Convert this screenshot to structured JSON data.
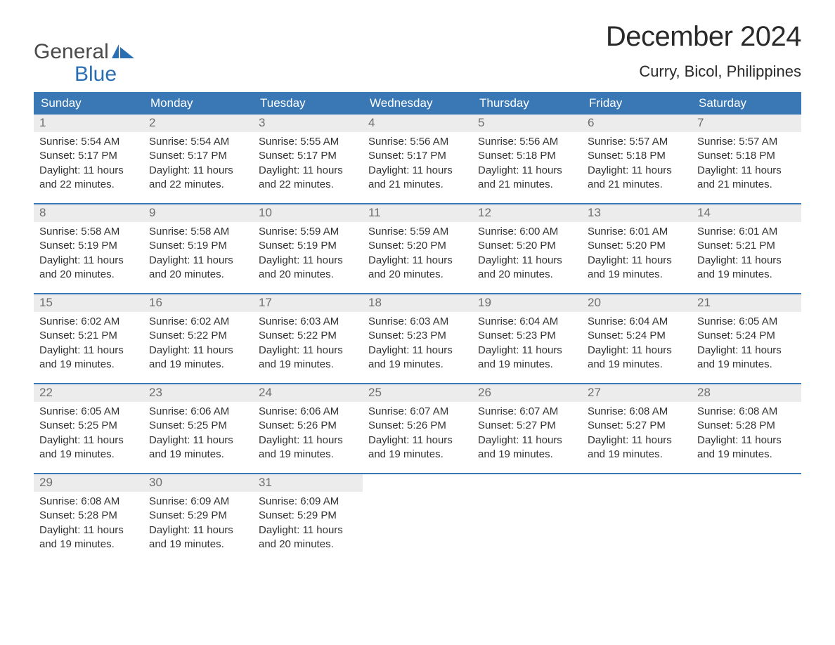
{
  "brand": {
    "top": "General",
    "bottom": "Blue",
    "flag_color": "#2b6fb3"
  },
  "title": "December 2024",
  "location": "Curry, Bicol, Philippines",
  "colors": {
    "header_bg": "#3a78b5",
    "header_text": "#ffffff",
    "daynum_bg": "#ececec",
    "daynum_text": "#6e6e6e",
    "week_border": "#3a78b5",
    "body_text": "#333333",
    "background": "#ffffff"
  },
  "dows": [
    "Sunday",
    "Monday",
    "Tuesday",
    "Wednesday",
    "Thursday",
    "Friday",
    "Saturday"
  ],
  "weeks": [
    [
      {
        "n": "1",
        "sunrise": "Sunrise: 5:54 AM",
        "sunset": "Sunset: 5:17 PM",
        "daylight": "Daylight: 11 hours and 22 minutes."
      },
      {
        "n": "2",
        "sunrise": "Sunrise: 5:54 AM",
        "sunset": "Sunset: 5:17 PM",
        "daylight": "Daylight: 11 hours and 22 minutes."
      },
      {
        "n": "3",
        "sunrise": "Sunrise: 5:55 AM",
        "sunset": "Sunset: 5:17 PM",
        "daylight": "Daylight: 11 hours and 22 minutes."
      },
      {
        "n": "4",
        "sunrise": "Sunrise: 5:56 AM",
        "sunset": "Sunset: 5:17 PM",
        "daylight": "Daylight: 11 hours and 21 minutes."
      },
      {
        "n": "5",
        "sunrise": "Sunrise: 5:56 AM",
        "sunset": "Sunset: 5:18 PM",
        "daylight": "Daylight: 11 hours and 21 minutes."
      },
      {
        "n": "6",
        "sunrise": "Sunrise: 5:57 AM",
        "sunset": "Sunset: 5:18 PM",
        "daylight": "Daylight: 11 hours and 21 minutes."
      },
      {
        "n": "7",
        "sunrise": "Sunrise: 5:57 AM",
        "sunset": "Sunset: 5:18 PM",
        "daylight": "Daylight: 11 hours and 21 minutes."
      }
    ],
    [
      {
        "n": "8",
        "sunrise": "Sunrise: 5:58 AM",
        "sunset": "Sunset: 5:19 PM",
        "daylight": "Daylight: 11 hours and 20 minutes."
      },
      {
        "n": "9",
        "sunrise": "Sunrise: 5:58 AM",
        "sunset": "Sunset: 5:19 PM",
        "daylight": "Daylight: 11 hours and 20 minutes."
      },
      {
        "n": "10",
        "sunrise": "Sunrise: 5:59 AM",
        "sunset": "Sunset: 5:19 PM",
        "daylight": "Daylight: 11 hours and 20 minutes."
      },
      {
        "n": "11",
        "sunrise": "Sunrise: 5:59 AM",
        "sunset": "Sunset: 5:20 PM",
        "daylight": "Daylight: 11 hours and 20 minutes."
      },
      {
        "n": "12",
        "sunrise": "Sunrise: 6:00 AM",
        "sunset": "Sunset: 5:20 PM",
        "daylight": "Daylight: 11 hours and 20 minutes."
      },
      {
        "n": "13",
        "sunrise": "Sunrise: 6:01 AM",
        "sunset": "Sunset: 5:20 PM",
        "daylight": "Daylight: 11 hours and 19 minutes."
      },
      {
        "n": "14",
        "sunrise": "Sunrise: 6:01 AM",
        "sunset": "Sunset: 5:21 PM",
        "daylight": "Daylight: 11 hours and 19 minutes."
      }
    ],
    [
      {
        "n": "15",
        "sunrise": "Sunrise: 6:02 AM",
        "sunset": "Sunset: 5:21 PM",
        "daylight": "Daylight: 11 hours and 19 minutes."
      },
      {
        "n": "16",
        "sunrise": "Sunrise: 6:02 AM",
        "sunset": "Sunset: 5:22 PM",
        "daylight": "Daylight: 11 hours and 19 minutes."
      },
      {
        "n": "17",
        "sunrise": "Sunrise: 6:03 AM",
        "sunset": "Sunset: 5:22 PM",
        "daylight": "Daylight: 11 hours and 19 minutes."
      },
      {
        "n": "18",
        "sunrise": "Sunrise: 6:03 AM",
        "sunset": "Sunset: 5:23 PM",
        "daylight": "Daylight: 11 hours and 19 minutes."
      },
      {
        "n": "19",
        "sunrise": "Sunrise: 6:04 AM",
        "sunset": "Sunset: 5:23 PM",
        "daylight": "Daylight: 11 hours and 19 minutes."
      },
      {
        "n": "20",
        "sunrise": "Sunrise: 6:04 AM",
        "sunset": "Sunset: 5:24 PM",
        "daylight": "Daylight: 11 hours and 19 minutes."
      },
      {
        "n": "21",
        "sunrise": "Sunrise: 6:05 AM",
        "sunset": "Sunset: 5:24 PM",
        "daylight": "Daylight: 11 hours and 19 minutes."
      }
    ],
    [
      {
        "n": "22",
        "sunrise": "Sunrise: 6:05 AM",
        "sunset": "Sunset: 5:25 PM",
        "daylight": "Daylight: 11 hours and 19 minutes."
      },
      {
        "n": "23",
        "sunrise": "Sunrise: 6:06 AM",
        "sunset": "Sunset: 5:25 PM",
        "daylight": "Daylight: 11 hours and 19 minutes."
      },
      {
        "n": "24",
        "sunrise": "Sunrise: 6:06 AM",
        "sunset": "Sunset: 5:26 PM",
        "daylight": "Daylight: 11 hours and 19 minutes."
      },
      {
        "n": "25",
        "sunrise": "Sunrise: 6:07 AM",
        "sunset": "Sunset: 5:26 PM",
        "daylight": "Daylight: 11 hours and 19 minutes."
      },
      {
        "n": "26",
        "sunrise": "Sunrise: 6:07 AM",
        "sunset": "Sunset: 5:27 PM",
        "daylight": "Daylight: 11 hours and 19 minutes."
      },
      {
        "n": "27",
        "sunrise": "Sunrise: 6:08 AM",
        "sunset": "Sunset: 5:27 PM",
        "daylight": "Daylight: 11 hours and 19 minutes."
      },
      {
        "n": "28",
        "sunrise": "Sunrise: 6:08 AM",
        "sunset": "Sunset: 5:28 PM",
        "daylight": "Daylight: 11 hours and 19 minutes."
      }
    ],
    [
      {
        "n": "29",
        "sunrise": "Sunrise: 6:08 AM",
        "sunset": "Sunset: 5:28 PM",
        "daylight": "Daylight: 11 hours and 19 minutes."
      },
      {
        "n": "30",
        "sunrise": "Sunrise: 6:09 AM",
        "sunset": "Sunset: 5:29 PM",
        "daylight": "Daylight: 11 hours and 19 minutes."
      },
      {
        "n": "31",
        "sunrise": "Sunrise: 6:09 AM",
        "sunset": "Sunset: 5:29 PM",
        "daylight": "Daylight: 11 hours and 20 minutes."
      },
      null,
      null,
      null,
      null
    ]
  ]
}
